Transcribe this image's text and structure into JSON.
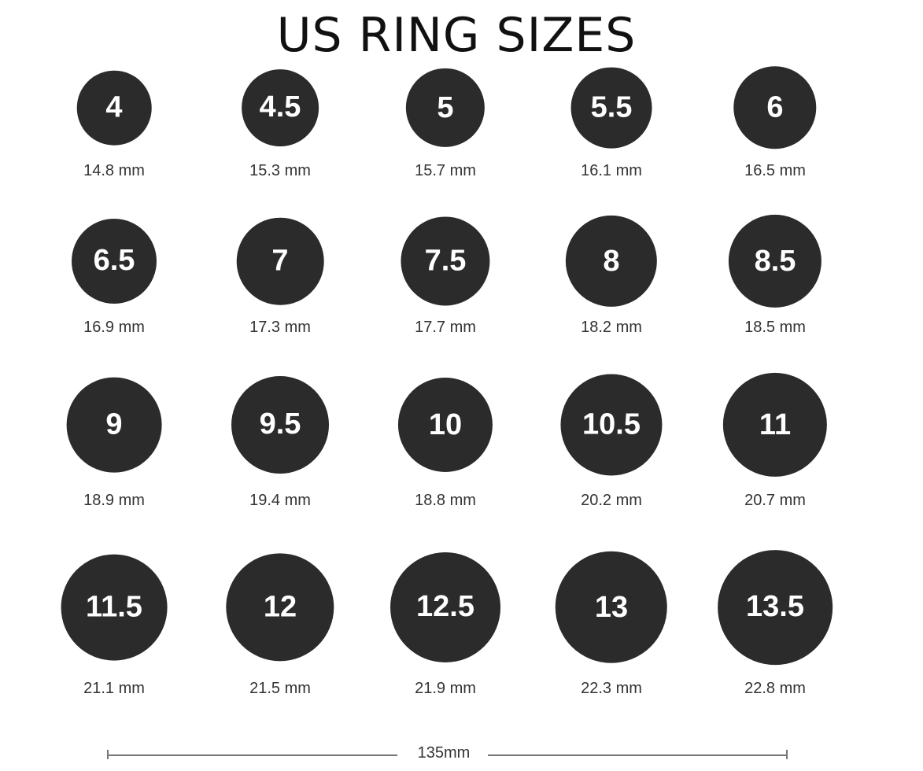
{
  "title": "US RING SIZES",
  "ring_color": "#2b2b2b",
  "rings": [
    {
      "size": "4",
      "diameter": "14.8 mm",
      "mm": 14.8
    },
    {
      "size": "4.5",
      "diameter": "15.3 mm",
      "mm": 15.3
    },
    {
      "size": "5",
      "diameter": "15.7 mm",
      "mm": 15.7
    },
    {
      "size": "5.5",
      "diameter": "16.1 mm",
      "mm": 16.1
    },
    {
      "size": "6",
      "diameter": "16.5 mm",
      "mm": 16.5
    },
    {
      "size": "6.5",
      "diameter": "16.9 mm",
      "mm": 16.9
    },
    {
      "size": "7",
      "diameter": "17.3 mm",
      "mm": 17.3
    },
    {
      "size": "7.5",
      "diameter": "17.7 mm",
      "mm": 17.7
    },
    {
      "size": "8",
      "diameter": "18.2 mm",
      "mm": 18.2
    },
    {
      "size": "8.5",
      "diameter": "18.5 mm",
      "mm": 18.5
    },
    {
      "size": "9",
      "diameter": "18.9 mm",
      "mm": 18.9
    },
    {
      "size": "9.5",
      "diameter": "19.4 mm",
      "mm": 19.4
    },
    {
      "size": "10",
      "diameter": "18.8 mm",
      "mm": 18.8
    },
    {
      "size": "10.5",
      "diameter": "20.2 mm",
      "mm": 20.2
    },
    {
      "size": "11",
      "diameter": "20.7 mm",
      "mm": 20.7
    },
    {
      "size": "11.5",
      "diameter": "21.1 mm",
      "mm": 21.1
    },
    {
      "size": "12",
      "diameter": "21.5 mm",
      "mm": 21.5
    },
    {
      "size": "12.5",
      "diameter": "21.9 mm",
      "mm": 21.9
    },
    {
      "size": "13",
      "diameter": "22.3 mm",
      "mm": 22.3
    },
    {
      "size": "13.5",
      "diameter": "22.8 mm",
      "mm": 22.8
    }
  ],
  "scale": {
    "label": "135mm",
    "mm": 135
  }
}
